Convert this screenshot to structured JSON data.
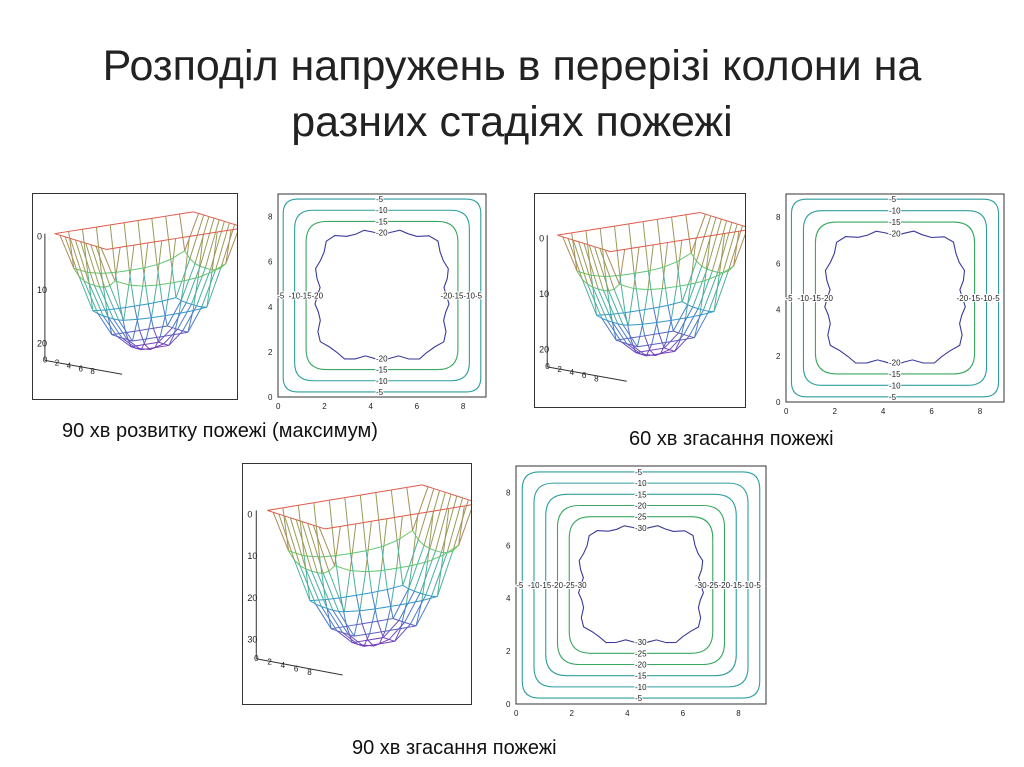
{
  "slide": {
    "title_line1": "Розподіл напружень в перерізі колони на",
    "title_line2": "разних стадіях пожежі"
  },
  "figures": [
    {
      "caption": "90 хв розвитку пожежі (максимум)",
      "surface_z_ticks": [
        "0",
        "10",
        "20"
      ],
      "surface_base_ticks": [
        "0",
        "2",
        "4",
        "6",
        "8"
      ],
      "contour_y_ticks": [
        "0",
        "2",
        "4",
        "6",
        "8"
      ],
      "contour_x_ticks": [
        "0",
        "2",
        "4",
        "6",
        "8"
      ],
      "contour_levels": [
        "-5",
        "-10",
        "-15",
        "-20"
      ],
      "min_level": -20
    },
    {
      "caption": "60 хв згасання пожежі",
      "surface_z_ticks": [
        "0",
        "10",
        "20"
      ],
      "surface_base_ticks": [
        "0",
        "2",
        "4",
        "6",
        "8"
      ],
      "contour_y_ticks": [
        "0",
        "2",
        "4",
        "6",
        "8"
      ],
      "contour_x_ticks": [
        "0",
        "2",
        "4",
        "6",
        "8"
      ],
      "contour_levels": [
        "-5",
        "-10",
        "-15",
        "-20"
      ],
      "min_level": -20
    },
    {
      "caption": "90 хв згасання пожежі",
      "surface_z_ticks": [
        "0",
        "10",
        "20",
        "30"
      ],
      "surface_base_ticks": [
        "0",
        "2",
        "4",
        "6",
        "8"
      ],
      "contour_y_ticks": [
        "0",
        "2",
        "4",
        "6",
        "8"
      ],
      "contour_x_ticks": [
        "0",
        "2",
        "4",
        "6",
        "8"
      ],
      "contour_levels": [
        "-5",
        "-10",
        "-15",
        "-20",
        "-25",
        "-30"
      ],
      "min_level": -30
    }
  ],
  "colors": {
    "contour_outer": "#2e9e9e",
    "contour_mid": "#3aa860",
    "contour_inner": "#3a3a9a",
    "mesh_top": "#e05a4a",
    "mesh_mid": "#66cc66",
    "mesh_low": "#3399cc",
    "mesh_bottom": "#7a3ab8"
  }
}
